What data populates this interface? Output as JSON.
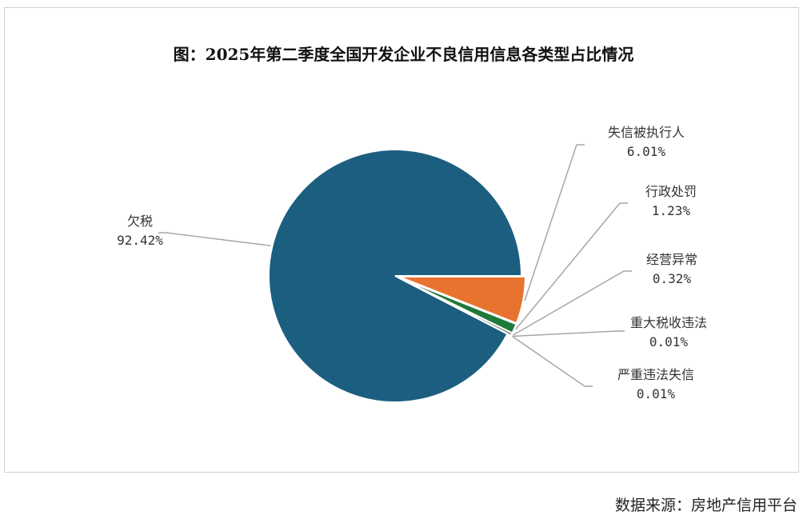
{
  "chart_data": {
    "type": "pie",
    "title": "图：2025年第二季度全国开发企业不良信用信息各类型占比情况",
    "slices": [
      {
        "label": "欠税",
        "value": 92.42,
        "value_text": "92.42%",
        "color": "#1b5e80"
      },
      {
        "label": "失信被执行人",
        "value": 6.01,
        "value_text": "6.01%",
        "color": "#e8732e"
      },
      {
        "label": "行政处罚",
        "value": 1.23,
        "value_text": "1.23%",
        "color": "#1f7a3a"
      },
      {
        "label": "经营异常",
        "value": 0.32,
        "value_text": "0.32%",
        "color": "#4a4a4a"
      },
      {
        "label": "重大税收违法",
        "value": 0.01,
        "value_text": "0.01%",
        "color": "#6a6a6a"
      },
      {
        "label": "严重违法失信",
        "value": 0.01,
        "value_text": "0.01%",
        "color": "#8a8a8a"
      }
    ],
    "legend": "none",
    "leader_line_color": "#a6a6a6"
  },
  "source": {
    "text": "数据来源：房地产信用平台"
  }
}
